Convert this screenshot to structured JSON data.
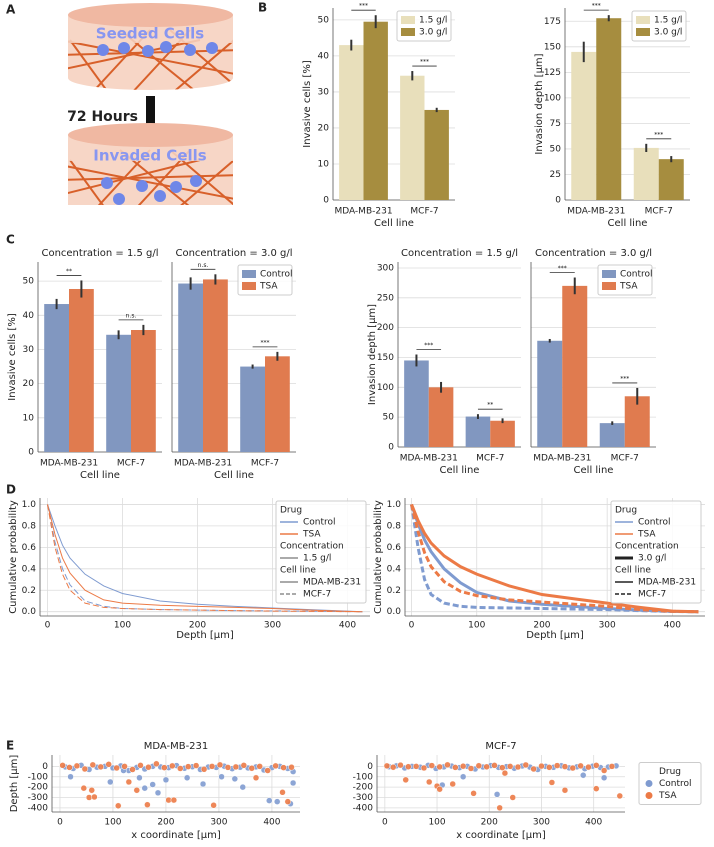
{
  "panel_labels": [
    "A",
    "B",
    "C",
    "D",
    "E"
  ],
  "diagram": {
    "top_label": "Seeded Cells",
    "arrow_label": "72 Hours",
    "bottom_label": "Invaded Cells"
  },
  "chart_data": [
    {
      "type": "bar",
      "ylabel": "Invasive cells [%]",
      "xlabel": "Cell line",
      "categories": [
        "MDA-MB-231",
        "MCF-7"
      ],
      "series": [
        {
          "name": "1.5 g/l",
          "color": "#e8dfbb",
          "values": [
            43,
            34.5
          ],
          "errors": [
            1.5,
            1.3
          ]
        },
        {
          "name": "3.0 g/l",
          "color": "#a68d3f",
          "values": [
            49.5,
            25
          ],
          "errors": [
            1.8,
            0.6
          ]
        }
      ],
      "significance": [
        "***",
        "***"
      ],
      "ylim": [
        0,
        53.3
      ],
      "yticks": [
        0,
        10,
        20,
        30,
        40,
        50
      ],
      "legend": "upper right"
    },
    {
      "type": "bar",
      "ylabel": "Invasion depth [μm]",
      "xlabel": "Cell line",
      "categories": [
        "MDA-MB-231",
        "MCF-7"
      ],
      "series": [
        {
          "name": "1.5 g/l",
          "color": "#e8dfbb",
          "values": [
            145,
            51
          ],
          "errors": [
            10,
            4
          ]
        },
        {
          "name": "3.0 g/l",
          "color": "#a68d3f",
          "values": [
            178,
            40
          ],
          "errors": [
            3,
            3
          ]
        }
      ],
      "significance": [
        "***",
        "***"
      ],
      "ylim": [
        0,
        188
      ],
      "yticks": [
        0,
        25,
        50,
        75,
        100,
        125,
        150,
        175
      ],
      "legend": "upper right"
    },
    {
      "type": "bar",
      "title": "Concentration = 1.5 g/l",
      "ylabel": "Invasive cells [%]",
      "xlabel": "Cell line",
      "categories": [
        "MDA-MB-231",
        "MCF-7"
      ],
      "series": [
        {
          "name": "Control",
          "color": "#8197c0",
          "values": [
            43.3,
            34.3
          ],
          "errors": [
            1.5,
            1.3
          ]
        },
        {
          "name": "TSA",
          "color": "#e07b4f",
          "values": [
            47.7,
            35.7
          ],
          "errors": [
            2.5,
            1.5
          ]
        }
      ],
      "significance": [
        "**",
        "n.s."
      ],
      "ylim": [
        0,
        55.6
      ],
      "yticks": [
        0,
        10,
        20,
        30,
        40,
        50
      ]
    },
    {
      "type": "bar",
      "title": "Concentration = 3.0 g/l",
      "xlabel": "Cell line",
      "categories": [
        "MDA-MB-231",
        "MCF-7"
      ],
      "series": [
        {
          "name": "Control",
          "color": "#8197c0",
          "values": [
            49.3,
            25
          ],
          "errors": [
            1.8,
            0.6
          ]
        },
        {
          "name": "TSA",
          "color": "#e07b4f",
          "values": [
            50.5,
            28
          ],
          "errors": [
            1.5,
            1.3
          ]
        }
      ],
      "significance": [
        "n.s.",
        "***"
      ],
      "ylim": [
        0,
        55.6
      ],
      "yticks": [
        0,
        10,
        20,
        30,
        40,
        50
      ],
      "ytick_labels": false,
      "legend": "upper right"
    },
    {
      "type": "bar",
      "title": "Concentration = 1.5 g/l",
      "ylabel": "Invasion depth [μm]",
      "xlabel": "Cell line",
      "categories": [
        "MDA-MB-231",
        "MCF-7"
      ],
      "series": [
        {
          "name": "Control",
          "color": "#8197c0",
          "values": [
            145,
            51
          ],
          "errors": [
            10,
            4
          ]
        },
        {
          "name": "TSA",
          "color": "#e07b4f",
          "values": [
            100,
            44
          ],
          "errors": [
            9,
            4
          ]
        }
      ],
      "significance": [
        "***",
        "**"
      ],
      "ylim": [
        0,
        310
      ],
      "yticks": [
        0,
        50,
        100,
        150,
        200,
        250,
        300
      ]
    },
    {
      "type": "bar",
      "title": "Concentration = 3.0 g/l",
      "xlabel": "Cell line",
      "categories": [
        "MDA-MB-231",
        "MCF-7"
      ],
      "series": [
        {
          "name": "Control",
          "color": "#8197c0",
          "values": [
            178,
            40
          ],
          "errors": [
            3,
            3
          ]
        },
        {
          "name": "TSA",
          "color": "#e07b4f",
          "values": [
            270,
            85
          ],
          "errors": [
            14,
            14
          ]
        }
      ],
      "significance": [
        "***",
        "***"
      ],
      "ylim": [
        0,
        310
      ],
      "yticks": [
        0,
        50,
        100,
        150,
        200,
        250,
        300
      ],
      "ytick_labels": false,
      "legend": "upper right"
    },
    {
      "type": "line",
      "ylabel": "Cumulative probability",
      "xlabel": "Depth [μm]",
      "x": [
        0,
        10,
        20,
        30,
        50,
        75,
        100,
        150,
        200,
        250,
        300,
        350,
        400,
        420
      ],
      "series": [
        {
          "color": "#7f9bd0",
          "width": 1,
          "dash": false,
          "values": [
            1,
            0.8,
            0.62,
            0.5,
            0.35,
            0.24,
            0.17,
            0.1,
            0.07,
            0.05,
            0.035,
            0.02,
            0.005,
            0
          ]
        },
        {
          "color": "#7f9bd0",
          "width": 1,
          "dash": true,
          "values": [
            1,
            0.65,
            0.4,
            0.25,
            0.1,
            0.05,
            0.03,
            0.02,
            0.015,
            0.01,
            0.008,
            0.005,
            0.001,
            0
          ]
        },
        {
          "color": "#ec7a46",
          "width": 1,
          "dash": false,
          "values": [
            1,
            0.72,
            0.5,
            0.36,
            0.2,
            0.11,
            0.08,
            0.06,
            0.05,
            0.04,
            0.03,
            0.015,
            0.003,
            0
          ]
        },
        {
          "color": "#ec7a46",
          "width": 1,
          "dash": true,
          "values": [
            1,
            0.6,
            0.35,
            0.2,
            0.08,
            0.04,
            0.03,
            0.02,
            0.015,
            0.01,
            0.006,
            0.003,
            0.001,
            0
          ]
        }
      ],
      "legend_entries": [
        {
          "label": "Drug"
        },
        {
          "label": "Control",
          "color": "#7f9bd0",
          "width": 1.5,
          "dash": false
        },
        {
          "label": "TSA",
          "color": "#ec7a46",
          "width": 1.5,
          "dash": false
        },
        {
          "label": "Concentration"
        },
        {
          "label": "1.5 g/l",
          "color": "#555555",
          "width": 1,
          "dash": false
        },
        {
          "label": "Cell line"
        },
        {
          "label": "MDA-MB-231",
          "color": "#555555",
          "width": 1,
          "dash": false
        },
        {
          "label": "MCF-7",
          "color": "#555555",
          "width": 1,
          "dash": true
        }
      ],
      "legend": "upper right",
      "grid": true,
      "xlim": [
        -10,
        430
      ],
      "xticks": [
        0,
        100,
        200,
        300,
        400
      ],
      "ylim": [
        -0.04,
        1.06
      ],
      "yticks": [
        {
          "value": 0,
          "label": "0.0"
        },
        0.2,
        0.4,
        0.6,
        0.8,
        {
          "value": 1,
          "label": "1.0"
        }
      ]
    },
    {
      "type": "line",
      "ylabel": "Cumulative probability",
      "xlabel": "Depth [μm]",
      "x": [
        0,
        10,
        20,
        30,
        50,
        75,
        100,
        150,
        200,
        250,
        300,
        350,
        400,
        440
      ],
      "series": [
        {
          "color": "#7f9bd0",
          "width": 3,
          "dash": false,
          "values": [
            1,
            0.82,
            0.67,
            0.56,
            0.4,
            0.27,
            0.18,
            0.1,
            0.07,
            0.05,
            0.03,
            0.015,
            0.003,
            0
          ]
        },
        {
          "color": "#7f9bd0",
          "width": 3,
          "dash": true,
          "values": [
            1,
            0.6,
            0.3,
            0.16,
            0.08,
            0.05,
            0.04,
            0.035,
            0.03,
            0.025,
            0.02,
            0.01,
            0.002,
            0
          ]
        },
        {
          "color": "#ec7a46",
          "width": 3,
          "dash": false,
          "values": [
            1,
            0.85,
            0.73,
            0.64,
            0.52,
            0.42,
            0.35,
            0.24,
            0.16,
            0.12,
            0.08,
            0.04,
            0.005,
            0
          ]
        },
        {
          "color": "#ec7a46",
          "width": 3,
          "dash": true,
          "values": [
            1,
            0.75,
            0.55,
            0.42,
            0.28,
            0.19,
            0.15,
            0.11,
            0.09,
            0.07,
            0.05,
            0.02,
            0.003,
            0
          ]
        }
      ],
      "legend_entries": [
        {
          "label": "Drug"
        },
        {
          "label": "Control",
          "color": "#7f9bd0",
          "width": 1.5,
          "dash": false
        },
        {
          "label": "TSA",
          "color": "#ec7a46",
          "width": 1.5,
          "dash": false
        },
        {
          "label": "Concentration"
        },
        {
          "label": "3.0 g/l",
          "color": "#222222",
          "width": 3,
          "dash": false
        },
        {
          "label": "Cell line"
        },
        {
          "label": "MDA-MB-231",
          "color": "#222222",
          "width": 1.5,
          "dash": false
        },
        {
          "label": "MCF-7",
          "color": "#222222",
          "width": 1.5,
          "dash": true
        }
      ],
      "legend": "upper right",
      "grid": true,
      "xlim": [
        -10,
        450
      ],
      "xticks": [
        0,
        100,
        200,
        300,
        400
      ],
      "ylim": [
        -0.04,
        1.06
      ],
      "yticks": [
        {
          "value": 0,
          "label": "0.0"
        },
        0.2,
        0.4,
        0.6,
        0.8,
        {
          "value": 1,
          "label": "1.0"
        }
      ]
    },
    {
      "type": "scatter",
      "title": "MDA-MB-231",
      "ylabel": "Depth [μm]",
      "xlabel": "x coordinate [μm]",
      "series": [
        {
          "name": "Control",
          "color": "#7f9bd0",
          "x": [
            10,
            25,
            40,
            55,
            70,
            85,
            100,
            115,
            130,
            145,
            160,
            175,
            190,
            205,
            220,
            235,
            250,
            265,
            280,
            295,
            310,
            325,
            340,
            355,
            370,
            385,
            400,
            415,
            430,
            440,
            20,
            95,
            150,
            160,
            175,
            185,
            200,
            240,
            270,
            305,
            330,
            345,
            395,
            410,
            435,
            440,
            120
          ],
          "values": [
            -5,
            -20,
            10,
            -30,
            -8,
            0,
            -15,
            5,
            -40,
            -10,
            -25,
            0,
            -5,
            -12,
            8,
            -18,
            -3,
            -30,
            -6,
            -10,
            2,
            -22,
            -8,
            -15,
            -5,
            -35,
            -12,
            0,
            -20,
            -50,
            -100,
            -150,
            -110,
            -210,
            -175,
            -255,
            -130,
            -110,
            -170,
            -100,
            -120,
            -200,
            -330,
            -340,
            -360,
            -160,
            -40
          ]
        },
        {
          "name": "TSA",
          "color": "#ec7a46",
          "x": [
            5,
            18,
            32,
            47,
            62,
            77,
            92,
            107,
            122,
            137,
            152,
            167,
            182,
            197,
            212,
            227,
            242,
            257,
            272,
            287,
            302,
            317,
            332,
            347,
            362,
            377,
            392,
            407,
            422,
            437,
            45,
            55,
            65,
            110,
            130,
            145,
            165,
            205,
            215,
            290,
            370,
            420,
            430,
            60
          ],
          "values": [
            10,
            -10,
            5,
            -25,
            15,
            -5,
            20,
            -15,
            0,
            -30,
            10,
            -8,
            25,
            -12,
            5,
            -20,
            -2,
            8,
            -28,
            0,
            15,
            -10,
            -5,
            10,
            -18,
            0,
            -40,
            5,
            -12,
            -8,
            -210,
            -300,
            -295,
            -380,
            -150,
            -230,
            -370,
            -325,
            -325,
            -375,
            -110,
            -250,
            -340,
            -230
          ]
        }
      ],
      "grid": true,
      "xlim": [
        -15,
        453
      ],
      "xticks": [
        0,
        100,
        200,
        300,
        400
      ],
      "ylim": [
        -440,
        110
      ],
      "yticks": [
        0,
        -100,
        -200,
        -300,
        -400
      ]
    },
    {
      "type": "scatter",
      "title": "MCF-7",
      "xlabel": "x coordinate [μm]",
      "series": [
        {
          "name": "Control",
          "color": "#7f9bd0",
          "x": [
            8,
            22,
            38,
            52,
            68,
            83,
            98,
            113,
            128,
            143,
            158,
            173,
            188,
            203,
            218,
            233,
            248,
            263,
            278,
            293,
            308,
            323,
            338,
            353,
            368,
            383,
            398,
            413,
            428,
            443,
            110,
            150,
            215,
            380,
            420
          ],
          "values": [
            -3,
            5,
            -15,
            0,
            -8,
            10,
            -20,
            -5,
            3,
            -12,
            0,
            -25,
            -6,
            8,
            -10,
            -2,
            -18,
            4,
            -7,
            -30,
            0,
            -9,
            6,
            -14,
            -4,
            -22,
            2,
            -11,
            -6,
            5,
            -180,
            -100,
            -270,
            -85,
            -110
          ]
        },
        {
          "name": "TSA",
          "color": "#ec7a46",
          "x": [
            4,
            16,
            30,
            45,
            60,
            75,
            90,
            105,
            120,
            135,
            150,
            165,
            180,
            195,
            210,
            225,
            240,
            255,
            270,
            285,
            300,
            315,
            330,
            345,
            360,
            375,
            390,
            405,
            420,
            435,
            40,
            85,
            100,
            105,
            130,
            170,
            220,
            245,
            320,
            345,
            405,
            450,
            230
          ],
          "values": [
            5,
            -8,
            12,
            -3,
            0,
            -15,
            8,
            -5,
            15,
            -10,
            2,
            -20,
            6,
            -4,
            10,
            -12,
            0,
            -6,
            14,
            -25,
            3,
            -9,
            8,
            -2,
            -16,
            5,
            -7,
            10,
            -40,
            0,
            -130,
            -150,
            -190,
            -220,
            -170,
            -260,
            -400,
            -300,
            -155,
            -230,
            -215,
            -285,
            -65
          ]
        }
      ],
      "grid": true,
      "xlim": [
        -15,
        460
      ],
      "xticks": [
        0,
        100,
        200,
        300,
        400
      ],
      "ylim": [
        -440,
        110
      ],
      "yticks": [
        0,
        -100,
        -200,
        -300,
        -400
      ],
      "legend": "outside right",
      "legend_title": "Drug"
    }
  ]
}
